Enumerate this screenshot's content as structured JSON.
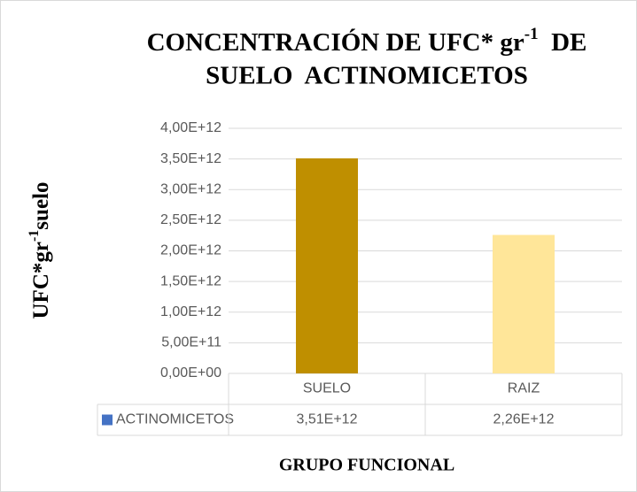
{
  "chart_data": {
    "type": "bar",
    "title": {
      "text": "CONCENTRACIÓN DE UFC* gr",
      "superscript": "-1",
      "text_after": "  DE",
      "line2": "SUELO  ACTINOMICETOS"
    },
    "y_axis_label": {
      "text": "UFC*gr",
      "superscript": "-1",
      "text_after": "suelo"
    },
    "x_axis_label": "GRUPO FUNCIONAL",
    "categories": [
      "SUELO",
      "RAIZ"
    ],
    "series": [
      {
        "name": "ACTINOMICETOS",
        "color": "#4472c4",
        "values": [
          3510000000000,
          2260000000000
        ],
        "value_labels": [
          "3,51E+12",
          "2,26E+12"
        ],
        "bar_colors": [
          "#bf8f00",
          "#ffe699"
        ]
      }
    ],
    "ylim": [
      0,
      4000000000000
    ],
    "yticks": [
      {
        "value": 0,
        "label": "0,00E+00"
      },
      {
        "value": 500000000000,
        "label": "5,00E+11"
      },
      {
        "value": 1000000000000,
        "label": "1,00E+12"
      },
      {
        "value": 1500000000000,
        "label": "1,50E+12"
      },
      {
        "value": 2000000000000,
        "label": "2,00E+12"
      },
      {
        "value": 2500000000000,
        "label": "2,50E+12"
      },
      {
        "value": 3000000000000,
        "label": "3,00E+12"
      },
      {
        "value": 3500000000000,
        "label": "3,50E+12"
      },
      {
        "value": 4000000000000,
        "label": "4,00E+12"
      }
    ],
    "grid": true,
    "data_table": true
  }
}
